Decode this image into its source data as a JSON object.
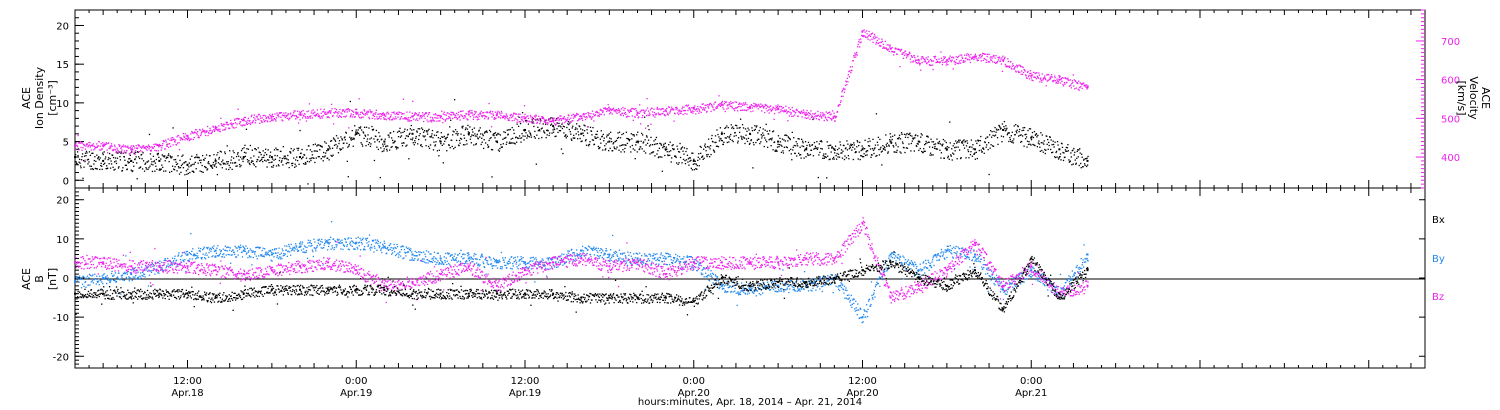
{
  "colors": {
    "black": "#000000",
    "magenta": "#ee22ee",
    "blue": "#2288ee"
  },
  "x_axis": {
    "start_hour": 4,
    "end_hour": 100,
    "ticks": [
      {
        "hour": 12,
        "time": "12:00",
        "date": "Apr.18"
      },
      {
        "hour": 24,
        "time": "0:00",
        "date": "Apr.19"
      },
      {
        "hour": 36,
        "time": "12:00",
        "date": "Apr.19"
      },
      {
        "hour": 48,
        "time": "0:00",
        "date": "Apr.20"
      },
      {
        "hour": 60,
        "time": "12:00",
        "date": "Apr.20"
      },
      {
        "hour": 72,
        "time": "0:00",
        "date": "Apr.21"
      }
    ],
    "title": "hours:minutes, Apr. 18, 2014 – Apr. 21, 2014"
  },
  "chart_data": [
    {
      "type": "scatter",
      "ylabel_left": [
        "ACE",
        "Ion Density",
        "[cm⁻³]"
      ],
      "ylabel_right": [
        "ACE",
        "Velocity",
        "[km/s]"
      ],
      "ylim_left": [
        -1,
        22
      ],
      "ylim_right": [
        320,
        780
      ],
      "yticks_left": [
        "0",
        "5",
        "10",
        "15",
        "20"
      ],
      "yticks_right": [
        "400",
        "500",
        "600",
        "700"
      ],
      "series": [
        {
          "axis": "left",
          "color": "#000000",
          "x": [
            4,
            6,
            8,
            10,
            12,
            14,
            16,
            18,
            20,
            22,
            24,
            26,
            28,
            30,
            32,
            34,
            36,
            38,
            40,
            42,
            44,
            46,
            48,
            50,
            52,
            54,
            56,
            58,
            60,
            62,
            64,
            66,
            68,
            70,
            72,
            74,
            76
          ],
          "values": [
            3,
            2.5,
            2.5,
            2.5,
            2,
            2.5,
            3,
            3,
            3,
            4,
            6,
            5,
            6,
            5,
            6,
            5,
            6.5,
            7,
            6,
            5,
            5,
            4,
            2.5,
            6,
            6,
            5,
            4,
            4,
            4,
            5,
            5,
            4,
            4,
            6.5,
            5.5,
            4,
            2.5
          ]
        },
        {
          "axis": "right",
          "color": "#ee22ee",
          "x": [
            4,
            6,
            8,
            10,
            12,
            14,
            16,
            18,
            20,
            22,
            24,
            26,
            28,
            30,
            32,
            34,
            36,
            38,
            40,
            42,
            44,
            46,
            48,
            50,
            52,
            54,
            56,
            58,
            60,
            62,
            64,
            66,
            68,
            70,
            72,
            74,
            76
          ],
          "values": [
            430,
            430,
            420,
            430,
            455,
            475,
            495,
            505,
            510,
            515,
            515,
            510,
            505,
            505,
            510,
            510,
            500,
            495,
            505,
            520,
            515,
            520,
            525,
            535,
            530,
            525,
            510,
            505,
            725,
            680,
            650,
            650,
            660,
            650,
            610,
            600,
            580
          ]
        }
      ]
    },
    {
      "type": "scatter",
      "ylabel_left": [
        "ACE",
        "B",
        "[nT]"
      ],
      "ylim_left": [
        -23,
        23
      ],
      "yticks_left": [
        "-20",
        "-10",
        "0",
        "10",
        "20"
      ],
      "legend": [
        "Bx",
        "By",
        "Bz"
      ],
      "series": [
        {
          "name": "Bx",
          "color": "#000000",
          "x": [
            4,
            6,
            8,
            10,
            12,
            14,
            16,
            18,
            20,
            22,
            24,
            26,
            28,
            30,
            32,
            34,
            36,
            38,
            40,
            42,
            44,
            46,
            48,
            50,
            52,
            54,
            56,
            58,
            60,
            62,
            64,
            66,
            68,
            70,
            72,
            74,
            76
          ],
          "values": [
            -4,
            -4,
            -4,
            -4,
            -4,
            -5,
            -4,
            -3,
            -3,
            -3,
            -3,
            -3,
            -4,
            -4,
            -4,
            -4,
            -4,
            -4,
            -5,
            -5,
            -5,
            -5,
            -6,
            0,
            -2,
            -1,
            -1,
            0,
            2,
            4,
            0,
            -2,
            2,
            -8,
            5,
            -5,
            2
          ]
        },
        {
          "name": "By",
          "color": "#2288ee",
          "x": [
            4,
            6,
            8,
            10,
            12,
            14,
            16,
            18,
            20,
            22,
            24,
            26,
            28,
            30,
            32,
            34,
            36,
            38,
            40,
            42,
            44,
            46,
            48,
            50,
            52,
            54,
            56,
            58,
            60,
            62,
            64,
            66,
            68,
            70,
            72,
            74,
            76
          ],
          "values": [
            -1,
            0,
            1,
            3,
            6,
            7,
            7,
            6,
            8,
            9,
            9,
            8,
            6,
            5,
            5,
            4,
            4,
            4,
            7,
            6,
            5,
            5,
            4,
            -2,
            -3,
            -2,
            -2,
            0,
            -10,
            6,
            2,
            7,
            6,
            -3,
            2,
            -4,
            6
          ]
        },
        {
          "name": "Bz",
          "color": "#ee22ee",
          "x": [
            4,
            6,
            8,
            10,
            12,
            14,
            16,
            18,
            20,
            22,
            24,
            26,
            28,
            30,
            32,
            34,
            36,
            38,
            40,
            42,
            44,
            46,
            48,
            50,
            52,
            54,
            56,
            58,
            60,
            62,
            64,
            66,
            68,
            70,
            72,
            74,
            76
          ],
          "values": [
            4,
            4,
            3,
            3,
            3,
            2,
            1,
            2,
            3,
            4,
            2,
            -2,
            -1,
            1,
            3,
            -2,
            2,
            4,
            5,
            3,
            4,
            1,
            4,
            4,
            4,
            4,
            5,
            5,
            14,
            -5,
            -2,
            2,
            9,
            -2,
            3,
            -4,
            -2
          ]
        }
      ]
    }
  ]
}
